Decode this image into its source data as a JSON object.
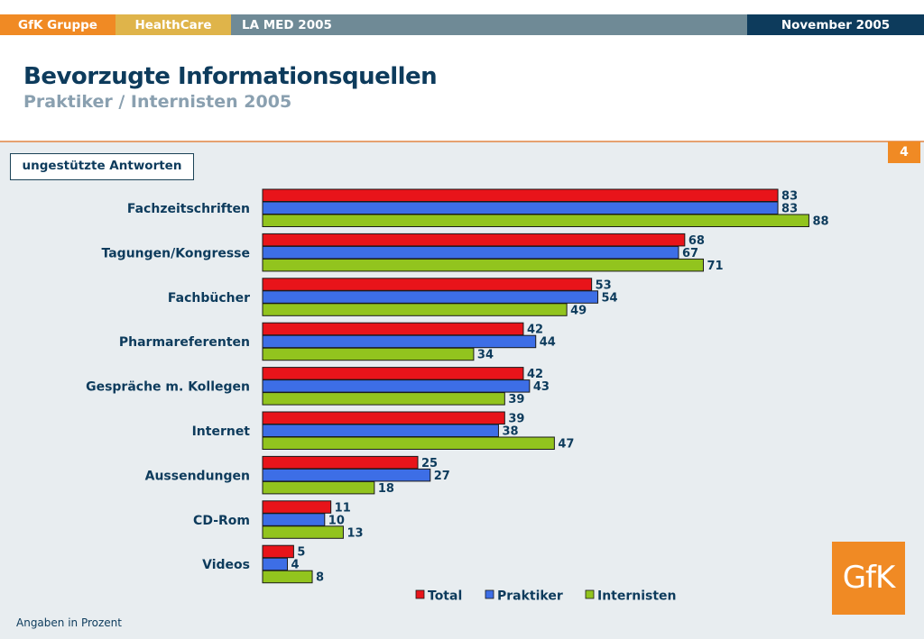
{
  "header": {
    "segments": [
      {
        "label": "GfK Gruppe",
        "color": "#f08a24"
      },
      {
        "label": "HealthCare",
        "color": "#dfb44a"
      },
      {
        "label": "LA MED 2005",
        "color": "#6f8a96"
      },
      {
        "label": "November 2005",
        "color": "#0d3b5c"
      }
    ]
  },
  "title": "Bevorzugte Informationsquellen",
  "subtitle": "Praktiker / Internisten 2005",
  "page_number": "4",
  "badge": "ungestützte Antworten",
  "footnote": "Angaben in Prozent",
  "logo_text": "GfK",
  "chart_data": {
    "type": "bar",
    "orientation": "horizontal",
    "categories": [
      "Fachzeitschriften",
      "Tagungen/Kongresse",
      "Fachbücher",
      "Pharmareferenten",
      "Gespräche m. Kollegen",
      "Internet",
      "Aussendungen",
      "CD-Rom",
      "Videos"
    ],
    "series": [
      {
        "name": "Total",
        "color": "#e8141a",
        "values": [
          83,
          68,
          53,
          42,
          42,
          39,
          25,
          11,
          5
        ]
      },
      {
        "name": "Praktiker",
        "color": "#3d6ee6",
        "values": [
          83,
          67,
          54,
          44,
          43,
          38,
          27,
          10,
          4
        ]
      },
      {
        "name": "Internisten",
        "color": "#92c41e",
        "values": [
          88,
          71,
          49,
          34,
          39,
          47,
          18,
          13,
          8
        ]
      }
    ],
    "xlim": [
      0,
      100
    ],
    "grid": false,
    "legend": "bottom",
    "data_labels": true
  }
}
